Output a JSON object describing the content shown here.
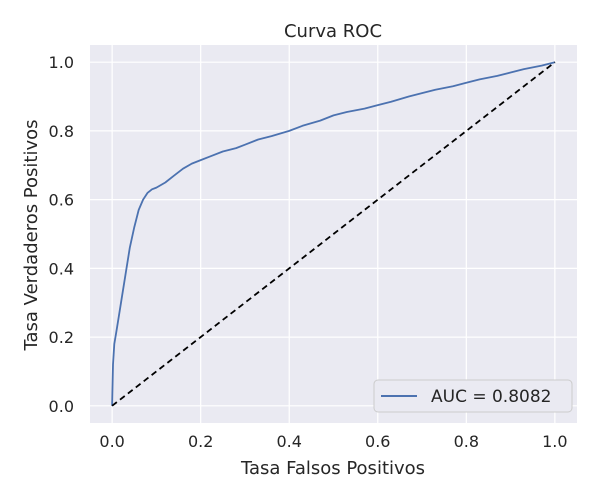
{
  "chart_data": {
    "type": "line",
    "title": "Curva ROC",
    "xlabel": "Tasa Falsos Positivos",
    "ylabel": "Tasa Verdaderos Positivos",
    "xlim": [
      -0.05,
      1.05
    ],
    "ylim": [
      -0.05,
      1.05
    ],
    "xticks": [
      0.0,
      0.2,
      0.4,
      0.6,
      0.8,
      1.0
    ],
    "yticks": [
      0.0,
      0.2,
      0.4,
      0.6,
      0.8,
      1.0
    ],
    "xtick_labels": [
      "0.0",
      "0.2",
      "0.4",
      "0.6",
      "0.8",
      "1.0"
    ],
    "ytick_labels": [
      "0.0",
      "0.2",
      "0.4",
      "0.6",
      "0.8",
      "1.0"
    ],
    "grid": true,
    "legend_position": "lower-right",
    "series": [
      {
        "name": "AUC = 0.8082",
        "color": "#4c72b0",
        "style": "solid",
        "x": [
          0.0,
          0.002,
          0.005,
          0.01,
          0.015,
          0.02,
          0.03,
          0.04,
          0.05,
          0.06,
          0.07,
          0.08,
          0.09,
          0.1,
          0.12,
          0.14,
          0.16,
          0.18,
          0.2,
          0.22,
          0.25,
          0.28,
          0.3,
          0.33,
          0.36,
          0.4,
          0.43,
          0.47,
          0.5,
          0.53,
          0.57,
          0.6,
          0.63,
          0.67,
          0.7,
          0.73,
          0.77,
          0.8,
          0.83,
          0.87,
          0.9,
          0.93,
          0.97,
          1.0
        ],
        "y": [
          0.0,
          0.12,
          0.18,
          0.22,
          0.26,
          0.3,
          0.38,
          0.46,
          0.52,
          0.57,
          0.6,
          0.62,
          0.63,
          0.635,
          0.65,
          0.67,
          0.69,
          0.705,
          0.715,
          0.725,
          0.74,
          0.75,
          0.76,
          0.775,
          0.785,
          0.8,
          0.815,
          0.83,
          0.845,
          0.855,
          0.865,
          0.875,
          0.885,
          0.9,
          0.91,
          0.92,
          0.93,
          0.94,
          0.95,
          0.96,
          0.97,
          0.98,
          0.99,
          1.0
        ]
      },
      {
        "name": "",
        "color": "#000000",
        "style": "dashed",
        "x": [
          0.0,
          1.0
        ],
        "y": [
          0.0,
          1.0
        ]
      }
    ]
  }
}
